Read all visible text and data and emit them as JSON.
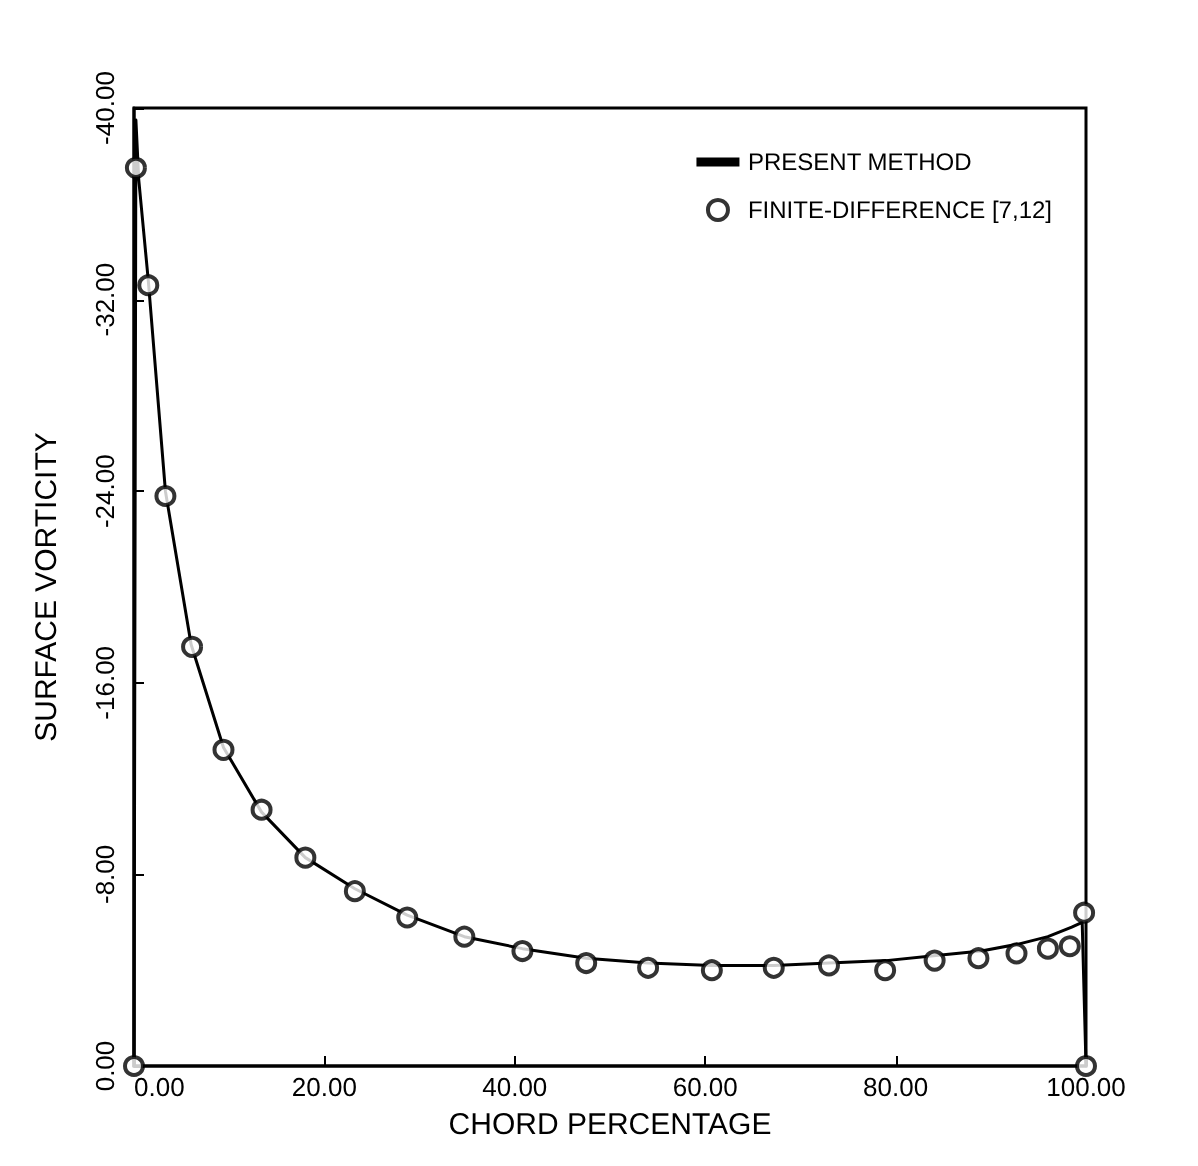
{
  "chart_data": {
    "type": "line",
    "xlabel": "CHORD PERCENTAGE",
    "ylabel": "SURFACE VORTICITY",
    "xlim": [
      0,
      100
    ],
    "ylim": [
      0,
      -40
    ],
    "xticks": [
      {
        "value": 0,
        "label": "0.00"
      },
      {
        "value": 20,
        "label": "20.00"
      },
      {
        "value": 40,
        "label": "40.00"
      },
      {
        "value": 60,
        "label": "60.00"
      },
      {
        "value": 80,
        "label": "80.00"
      },
      {
        "value": 100,
        "label": "100.00"
      }
    ],
    "yticks": [
      {
        "value": 0,
        "label": "0.00"
      },
      {
        "value": -8,
        "label": "-8.00"
      },
      {
        "value": -16,
        "label": "-16.00"
      },
      {
        "value": -24,
        "label": "-24.00"
      },
      {
        "value": -32,
        "label": "-32.00"
      },
      {
        "value": -40,
        "label": "-40.00"
      }
    ],
    "grid": false,
    "legend": "top right",
    "series": [
      {
        "name": "PRESENT METHOD",
        "type": "line",
        "color": "#000000",
        "marker": "none",
        "line_style": "solid",
        "x": [
          0,
          0.2,
          0.5,
          1.5,
          3.3,
          6,
          9.4,
          13.4,
          18,
          23.2,
          28.7,
          34.7,
          40.8,
          47.5,
          54,
          60.7,
          67.2,
          73,
          79,
          84,
          89,
          93,
          96,
          98.5,
          99.6,
          100
        ],
        "values": [
          0,
          -39.5,
          -37,
          -32.8,
          -24,
          -17.6,
          -13.3,
          -10.6,
          -8.7,
          -7.4,
          -6.3,
          -5.4,
          -4.9,
          -4.5,
          -4.3,
          -4.2,
          -4.2,
          -4.3,
          -4.4,
          -4.6,
          -4.8,
          -5.1,
          -5.4,
          -5.8,
          -6,
          0
        ]
      },
      {
        "name": "FINITE-DIFFERENCE [7,12]",
        "type": "scatter",
        "color": "#000000",
        "marker": "circle",
        "x": [
          0,
          0.2,
          1.5,
          3.3,
          6.1,
          9.4,
          13.4,
          18,
          23.2,
          28.7,
          34.7,
          40.8,
          47.5,
          54,
          60.7,
          67.2,
          73,
          78.9,
          84.1,
          88.7,
          92.7,
          96,
          98.3,
          99.8,
          100
        ],
        "values": [
          0,
          -37.5,
          -32.6,
          -23.8,
          -17.5,
          -13.2,
          -10.7,
          -8.7,
          -7.3,
          -6.2,
          -5.4,
          -4.8,
          -4.3,
          -4.1,
          -4,
          -4.1,
          -4.2,
          -4,
          -4.4,
          -4.5,
          -4.7,
          -4.9,
          -5,
          -6.4,
          0
        ]
      }
    ]
  }
}
